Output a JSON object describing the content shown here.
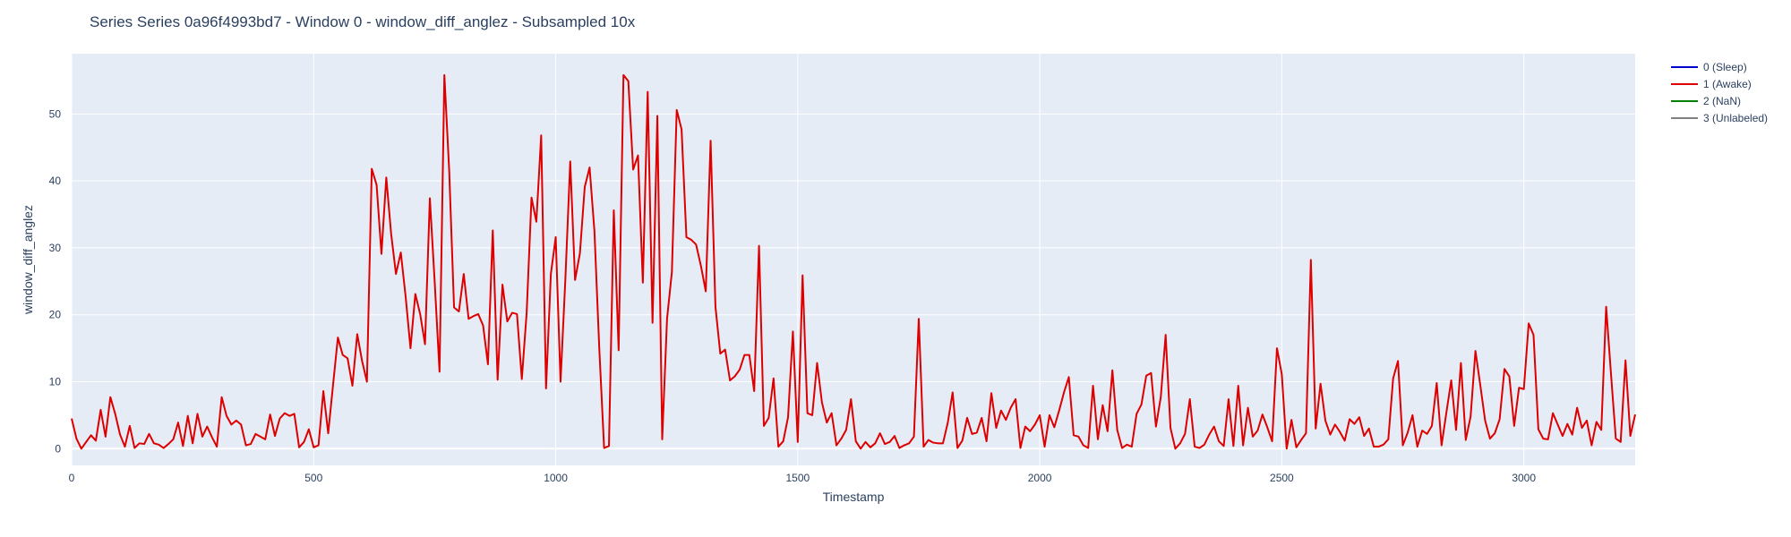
{
  "chart_data": {
    "type": "line",
    "title": "Series Series 0a96f4993bd7 - Window 0 - window_diff_anglez - Subsampled 10x",
    "xlabel": "Timestamp",
    "ylabel": "window_diff_anglez",
    "xlim": [
      0,
      3230
    ],
    "ylim": [
      -2.5,
      59
    ],
    "x_ticks": [
      0,
      500,
      1000,
      1500,
      2000,
      2500,
      3000
    ],
    "y_ticks": [
      0,
      10,
      20,
      30,
      40,
      50
    ],
    "grid": true,
    "legend_position": "right",
    "legend": [
      {
        "name": "0 (Sleep)",
        "color": "#0000cc"
      },
      {
        "name": "1 (Awake)",
        "color": "#dd0000"
      },
      {
        "name": "2 (NaN)",
        "color": "#008000"
      },
      {
        "name": "3 (Unlabeled)",
        "color": "#808080"
      }
    ],
    "series": [
      {
        "name": "1 (Awake)",
        "color": "#dd0000",
        "x_step": 10,
        "values": [
          4.5,
          1.5,
          0,
          1,
          2,
          1.2,
          5.8,
          1.8,
          7.7,
          5.2,
          2.1,
          0.3,
          3.4,
          0.1,
          0.8,
          0.7,
          2.2,
          0.8,
          0.6,
          0.1,
          0.7,
          1.4,
          3.9,
          0.4,
          4.9,
          0.8,
          5.2,
          1.8,
          3.3,
          1.7,
          0.3,
          7.7,
          4.9,
          3.6,
          4.2,
          3.6,
          0.5,
          0.7,
          2.2,
          1.8,
          1.4,
          5.1,
          1.9,
          4.5,
          5.3,
          4.9,
          5.2,
          0.2,
          1,
          2.9,
          0.2,
          0.5,
          8.6,
          2.3,
          9.5,
          16.6,
          14,
          13.5,
          9.4,
          17.1,
          13.1,
          10,
          41.8,
          39.4,
          29.1,
          40.5,
          32.1,
          26.1,
          29.3,
          22.7,
          15,
          23.1,
          20.1,
          15.6,
          37.4,
          24.9,
          11.5,
          55.8,
          41.5,
          21.1,
          20.5,
          26.1,
          19.4,
          19.8,
          20.1,
          18.4,
          12.6,
          32.6,
          10.3,
          24.5,
          19,
          20.3,
          20.1,
          10.4,
          20.3,
          37.5,
          33.9,
          46.8,
          9,
          26.1,
          31.6,
          10,
          25.4,
          42.9,
          25.2,
          29.2,
          39.1,
          42,
          32.5,
          15,
          0.1,
          0.4,
          35.6,
          14.7,
          55.8,
          54.9,
          41.7,
          43.8,
          24.8,
          53.3,
          18.8,
          49.7,
          1.4,
          19.4,
          26.4,
          50.6,
          47.7,
          31.6,
          31.2,
          30.5,
          27.3,
          23.5,
          46,
          21.2,
          14.2,
          14.8,
          10.2,
          10.8,
          11.8,
          14,
          14,
          8.6,
          30.3,
          3.4,
          4.6,
          10.5,
          0.3,
          1.1,
          4.7,
          17.5,
          1,
          25.9,
          5.3,
          5,
          12.8,
          6.9,
          3.9,
          5.3,
          0.5,
          1.5,
          2.8,
          7.4,
          1.1,
          0,
          1,
          0.2,
          0.8,
          2.3,
          0.7,
          1,
          1.9,
          0.1,
          0.5,
          0.8,
          1.8,
          19.4,
          0.3,
          1.3,
          0.9,
          0.8,
          0.8,
          3.9,
          8.4,
          0.1,
          1.2,
          4.6,
          2.2,
          2.4,
          4.6,
          1.1,
          8.3,
          3.1,
          5.7,
          4.3,
          6.1,
          7.4,
          0.1,
          3.3,
          2.6,
          3.6,
          5,
          0.3,
          5,
          3.2,
          5.7,
          8.4,
          10.7,
          2,
          1.8,
          0.5,
          0.1,
          9.4,
          1.4,
          6.5,
          2.6,
          11.7,
          2.8,
          0.1,
          0.6,
          0.3,
          5.2,
          6.6,
          10.9,
          11.3,
          3.3,
          7.7,
          17,
          3.1,
          0,
          0.8,
          2.2,
          7.4,
          0.3,
          0.1,
          0.6,
          2.1,
          3.3,
          1.1,
          0.4,
          7.4,
          0.4,
          9.4,
          0.5,
          6.1,
          1.8,
          2.7,
          5.1,
          3.2,
          1.1,
          15,
          11.1,
          0,
          4.3,
          0.2,
          1.3,
          2.3,
          28.2,
          3,
          9.7,
          4.2,
          2.1,
          3.6,
          2.5,
          1.2,
          4.4,
          3.7,
          4.7,
          1.9,
          3,
          0.3,
          0.3,
          0.6,
          1.4,
          10.5,
          13.1,
          0.5,
          2.4,
          5,
          0.3,
          2.7,
          2.2,
          3.4,
          9.8,
          0.5,
          5.4,
          10.2,
          2.8,
          12.8,
          1.3,
          4.8,
          14.6,
          9.5,
          4.2,
          1.5,
          2.3,
          4.4,
          11.9,
          10.8,
          3.4,
          9.1,
          8.9,
          18.7,
          17,
          2.9,
          1.5,
          1.4,
          5.3,
          3.6,
          1.9,
          3.7,
          2.1,
          6.1,
          3.1,
          4.2,
          0.5,
          4,
          2.8,
          21.2,
          11.2,
          1.5,
          1,
          13.2,
          1.9,
          5.1
        ]
      }
    ]
  }
}
